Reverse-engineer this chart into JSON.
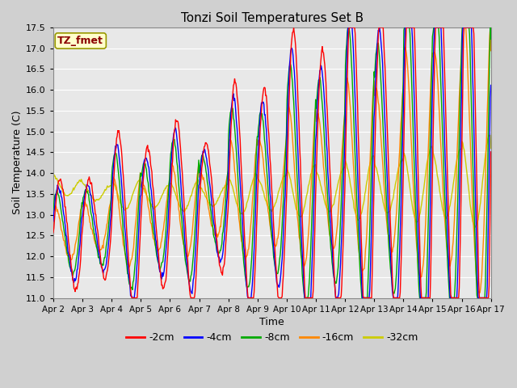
{
  "title": "Tonzi Soil Temperatures Set B",
  "xlabel": "Time",
  "ylabel": "Soil Temperature (C)",
  "ylim": [
    11.0,
    17.5
  ],
  "yticks": [
    11.0,
    11.5,
    12.0,
    12.5,
    13.0,
    13.5,
    14.0,
    14.5,
    15.0,
    15.5,
    16.0,
    16.5,
    17.0,
    17.5
  ],
  "xtick_labels": [
    "Apr 2",
    "Apr 3",
    "Apr 4",
    "Apr 5",
    "Apr 6",
    "Apr 7",
    "Apr 8",
    "Apr 9",
    "Apr 10",
    "Apr 11",
    "Apr 12",
    "Apr 13",
    "Apr 14",
    "Apr 15",
    "Apr 16",
    "Apr 17"
  ],
  "colors": {
    "-2cm": "#ff0000",
    "-4cm": "#0000ff",
    "-8cm": "#00aa00",
    "-16cm": "#ff8800",
    "-32cm": "#cccc00"
  },
  "legend_label": "TZ_fmet",
  "fig_bg": "#d0d0d0",
  "plot_bg": "#e8e8e8",
  "grid_color": "#ffffff"
}
